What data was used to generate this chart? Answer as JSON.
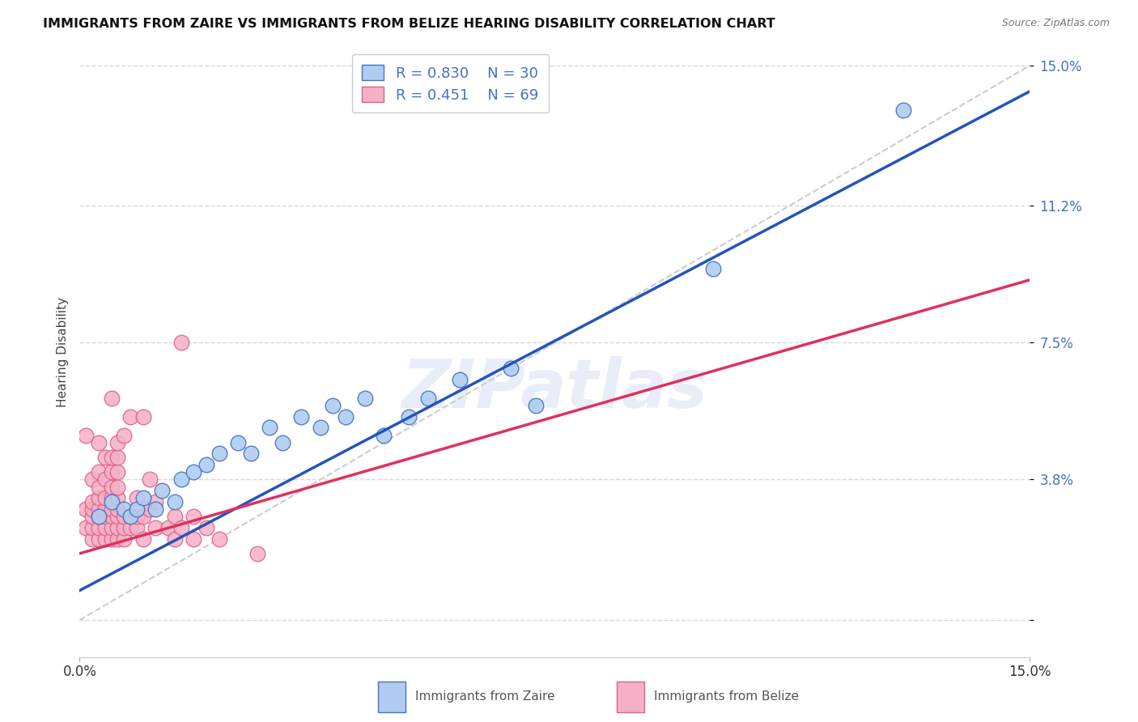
{
  "title": "IMMIGRANTS FROM ZAIRE VS IMMIGRANTS FROM BELIZE HEARING DISABILITY CORRELATION CHART",
  "source": "Source: ZipAtlas.com",
  "ylabel": "Hearing Disability",
  "xlim": [
    0.0,
    0.15
  ],
  "ylim": [
    -0.01,
    0.155
  ],
  "blue_R": 0.83,
  "blue_N": 30,
  "pink_R": 0.451,
  "pink_N": 69,
  "blue_face_color": "#b0ccf0",
  "blue_edge_color": "#4472c4",
  "blue_line_color": "#2255bb",
  "pink_face_color": "#f5b0c8",
  "pink_edge_color": "#e06080",
  "pink_line_color": "#e03060",
  "legend_label_blue": "Immigrants from Zaire",
  "legend_label_pink": "Immigrants from Belize",
  "watermark": "ZIPatlas",
  "ytick_color": "#4472c4",
  "grid_color": "#d8d8d8",
  "bg_color": "#ffffff",
  "blue_line_x0": 0.0,
  "blue_line_y0": 0.008,
  "blue_line_x1": 0.15,
  "blue_line_y1": 0.143,
  "pink_line_x0": 0.0,
  "pink_line_y0": 0.018,
  "pink_line_x1": 0.15,
  "pink_line_y1": 0.092,
  "ref_line_x0": 0.0,
  "ref_line_y0": 0.0,
  "ref_line_x1": 0.15,
  "ref_line_y1": 0.15,
  "blue_scatter_x": [
    0.003,
    0.005,
    0.007,
    0.008,
    0.009,
    0.01,
    0.012,
    0.013,
    0.015,
    0.016,
    0.018,
    0.02,
    0.022,
    0.025,
    0.027,
    0.03,
    0.032,
    0.035,
    0.038,
    0.04,
    0.042,
    0.045,
    0.048,
    0.052,
    0.055,
    0.06,
    0.068,
    0.072,
    0.1,
    0.13
  ],
  "blue_scatter_y": [
    0.028,
    0.032,
    0.03,
    0.028,
    0.03,
    0.033,
    0.03,
    0.035,
    0.032,
    0.038,
    0.04,
    0.042,
    0.045,
    0.048,
    0.045,
    0.052,
    0.048,
    0.055,
    0.052,
    0.058,
    0.055,
    0.06,
    0.05,
    0.055,
    0.06,
    0.065,
    0.068,
    0.058,
    0.095,
    0.138
  ],
  "pink_scatter_x": [
    0.001,
    0.001,
    0.001,
    0.002,
    0.002,
    0.002,
    0.002,
    0.002,
    0.002,
    0.003,
    0.003,
    0.003,
    0.003,
    0.003,
    0.003,
    0.003,
    0.003,
    0.004,
    0.004,
    0.004,
    0.004,
    0.004,
    0.004,
    0.004,
    0.005,
    0.005,
    0.005,
    0.005,
    0.005,
    0.005,
    0.005,
    0.005,
    0.005,
    0.006,
    0.006,
    0.006,
    0.006,
    0.006,
    0.006,
    0.006,
    0.006,
    0.006,
    0.007,
    0.007,
    0.007,
    0.007,
    0.008,
    0.008,
    0.008,
    0.009,
    0.009,
    0.009,
    0.01,
    0.01,
    0.01,
    0.011,
    0.011,
    0.012,
    0.012,
    0.014,
    0.015,
    0.015,
    0.016,
    0.016,
    0.018,
    0.018,
    0.02,
    0.022,
    0.028
  ],
  "pink_scatter_y": [
    0.025,
    0.03,
    0.05,
    0.022,
    0.025,
    0.028,
    0.03,
    0.032,
    0.038,
    0.022,
    0.025,
    0.028,
    0.03,
    0.033,
    0.036,
    0.04,
    0.048,
    0.022,
    0.025,
    0.028,
    0.03,
    0.033,
    0.038,
    0.044,
    0.022,
    0.025,
    0.028,
    0.03,
    0.033,
    0.036,
    0.04,
    0.044,
    0.06,
    0.022,
    0.025,
    0.028,
    0.03,
    0.033,
    0.036,
    0.04,
    0.044,
    0.048,
    0.022,
    0.025,
    0.028,
    0.05,
    0.025,
    0.028,
    0.055,
    0.025,
    0.028,
    0.033,
    0.022,
    0.028,
    0.055,
    0.03,
    0.038,
    0.025,
    0.032,
    0.025,
    0.022,
    0.028,
    0.025,
    0.075,
    0.022,
    0.028,
    0.025,
    0.022,
    0.018
  ]
}
